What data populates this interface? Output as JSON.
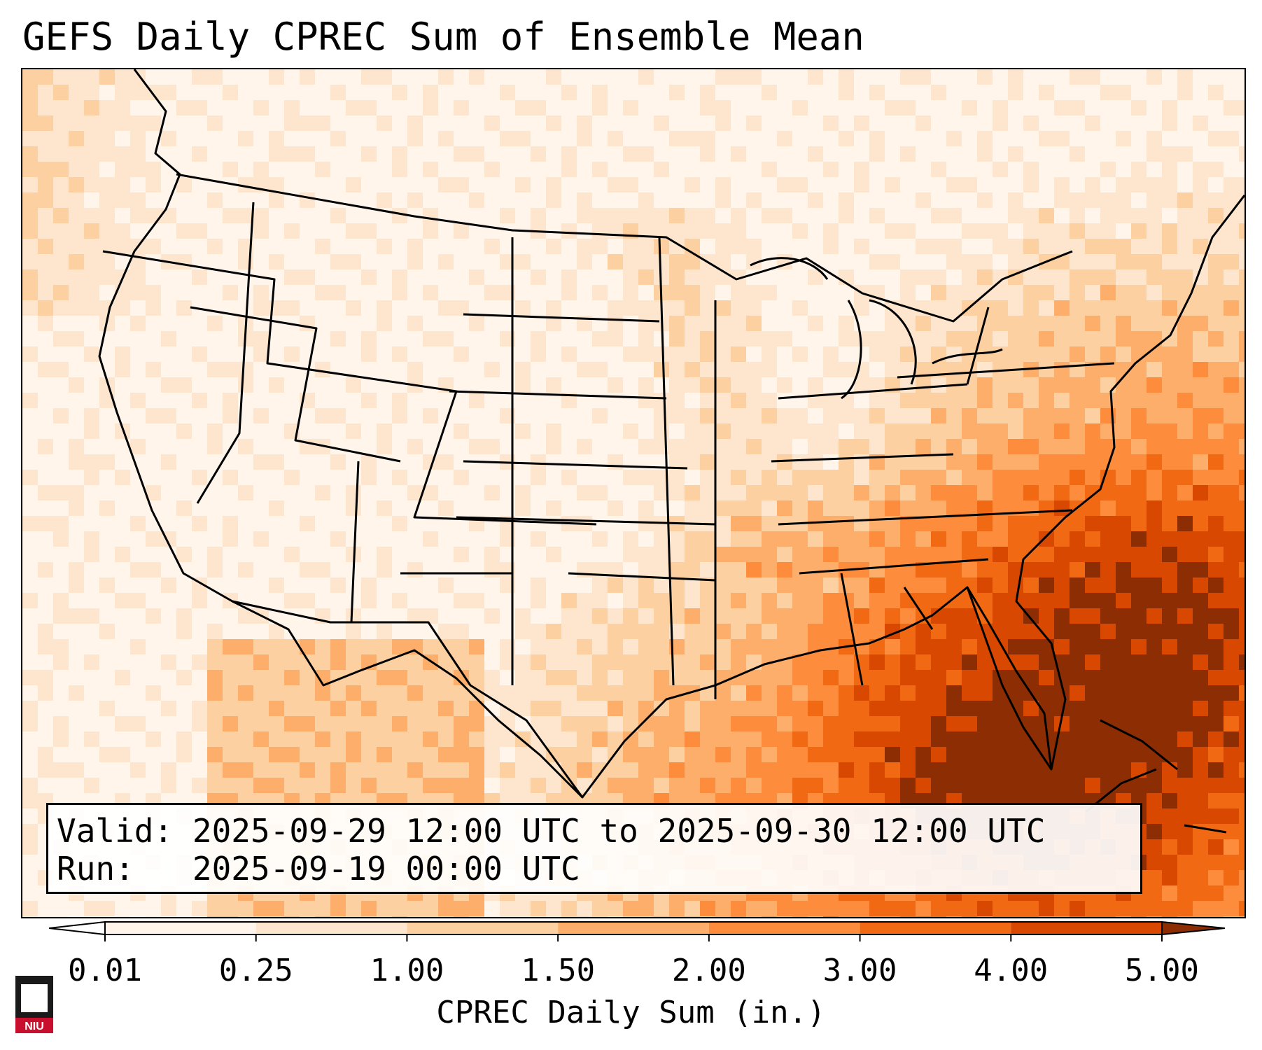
{
  "title": "GEFS Daily CPREC Sum of Ensemble Mean",
  "info": {
    "valid_label": "Valid:",
    "valid_value": "2025-09-29 12:00 UTC to 2025-09-30 12:00 UTC",
    "run_label": "Run:",
    "run_value": "2025-09-19 00:00 UTC"
  },
  "colorbar": {
    "label": "CPREC Daily Sum (in.)",
    "ticks": [
      "0.01",
      "0.25",
      "1.00",
      "1.50",
      "2.00",
      "3.00",
      "4.00",
      "5.00"
    ],
    "colors": [
      "#fff5eb",
      "#fee6ce",
      "#fdd0a2",
      "#fdae6b",
      "#fd8d3c",
      "#f16913",
      "#d94801",
      "#8c2d04"
    ],
    "under_color": "#ffffff",
    "over_color": "#8c2d04"
  },
  "map": {
    "projection": "Lambert conformal",
    "region": "Contiguous United States, northern Mexico, Gulf of Mexico, western Atlantic",
    "border_color": "#000000"
  },
  "logo": {
    "text": "NIU",
    "color": "#c8102e"
  }
}
